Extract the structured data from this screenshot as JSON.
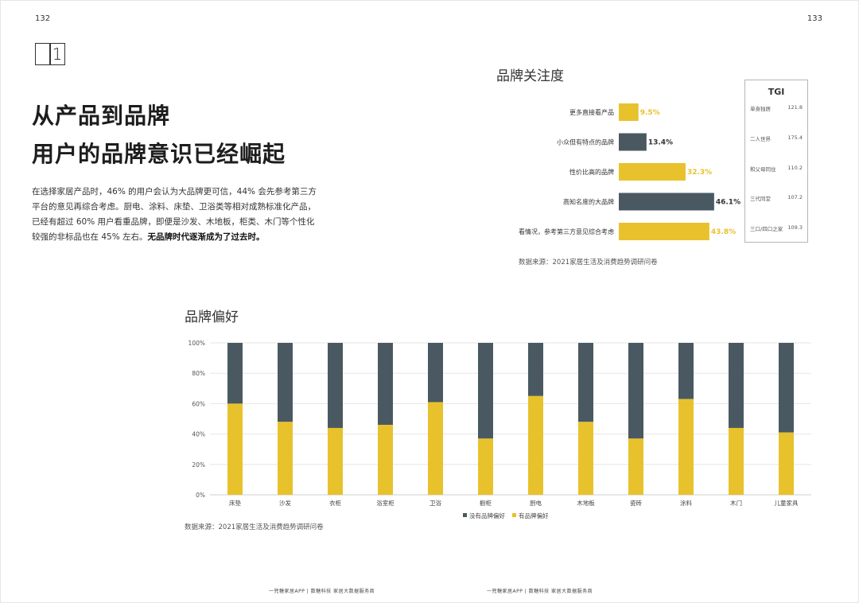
{
  "page_numbers": {
    "left": "132",
    "right": "133"
  },
  "section_number": "1",
  "headline": {
    "line1": "从产品到品牌",
    "line2": "用户的品牌意识已经崛起"
  },
  "intro": {
    "text": "在选择家居产品时，46% 的用户会认为大品牌更可信，44% 会先参考第三方平台的意见再综合考虑。厨电、涂料、床垫、卫浴类等相对成熟标准化产品，已经有超过 60% 用户看重品牌，即便是沙发、木地板，柜类、木门等个性化较强的非标品也在 45% 左右。",
    "bold": "无品牌时代逐渐成为了过去时。"
  },
  "attention_chart": {
    "heading": "品牌关注度",
    "source": "数据来源：2021家居生活及消费趋势调研问卷"
  },
  "tgi": {
    "heading": "TGI",
    "rows": [
      {
        "label": "单身独居",
        "value": "121.8"
      },
      {
        "label": "二人世界",
        "value": "175.4"
      },
      {
        "label": "和父母同住",
        "value": "110.2"
      },
      {
        "label": "三代同堂",
        "value": "107.2"
      },
      {
        "label": "三口/四口之家",
        "value": "109.3"
      }
    ]
  },
  "preference_chart": {
    "heading": "品牌偏好",
    "source": "数据来源：2021家居生活及消费趋势调研问卷"
  },
  "colors": {
    "yellow": "#e8c22c",
    "slate": "#4a5961",
    "grid": "#e2e2e2"
  },
  "chart_data": [
    {
      "type": "bar",
      "orientation": "horizontal",
      "title": "品牌关注度",
      "categories": [
        "更多直接看产品",
        "小众但有特点的品牌",
        "性价比高的品牌",
        "高知名度的大品牌",
        "看情况，参考第三方意见综合考虑"
      ],
      "values": [
        9.5,
        13.4,
        32.3,
        46.1,
        43.8
      ],
      "labels": [
        "9.5%",
        "13.4%",
        "32.3%",
        "46.1%",
        "43.8%"
      ],
      "bar_colors": [
        "#e8c22c",
        "#4a5961",
        "#e8c22c",
        "#4a5961",
        "#e8c22c"
      ],
      "label_colors": [
        "#e8c22c",
        "#333333",
        "#e8c22c",
        "#333333",
        "#e8c22c"
      ],
      "xlim": [
        0,
        50
      ],
      "grid": false
    },
    {
      "type": "bar",
      "stacked": true,
      "title": "品牌偏好",
      "categories": [
        "床垫",
        "沙发",
        "衣柜",
        "浴室柜",
        "卫浴",
        "橱柜",
        "厨电",
        "木地板",
        "瓷砖",
        "涂料",
        "木门",
        "儿童家具"
      ],
      "series": [
        {
          "name": "有品牌偏好",
          "color": "#e8c22c",
          "values": [
            60,
            48,
            44,
            46,
            61,
            37,
            65,
            48,
            37,
            63,
            44,
            41
          ]
        },
        {
          "name": "没有品牌偏好",
          "color": "#4a5961",
          "values": [
            40,
            52,
            56,
            54,
            39,
            63,
            35,
            52,
            63,
            37,
            56,
            59
          ]
        }
      ],
      "legend_order": [
        "没有品牌偏好",
        "有品牌偏好"
      ],
      "y_ticks": [
        "0%",
        "20%",
        "40%",
        "60%",
        "80%",
        "100%"
      ],
      "ylim": [
        0,
        100
      ],
      "grid": true,
      "legend": "bottom"
    }
  ],
  "footer": {
    "left": "一兜糖家居APP  |  数糖科技  家居大数据服务商",
    "right": "一兜糖家居APP  |  数糖科技  家居大数据服务商"
  }
}
